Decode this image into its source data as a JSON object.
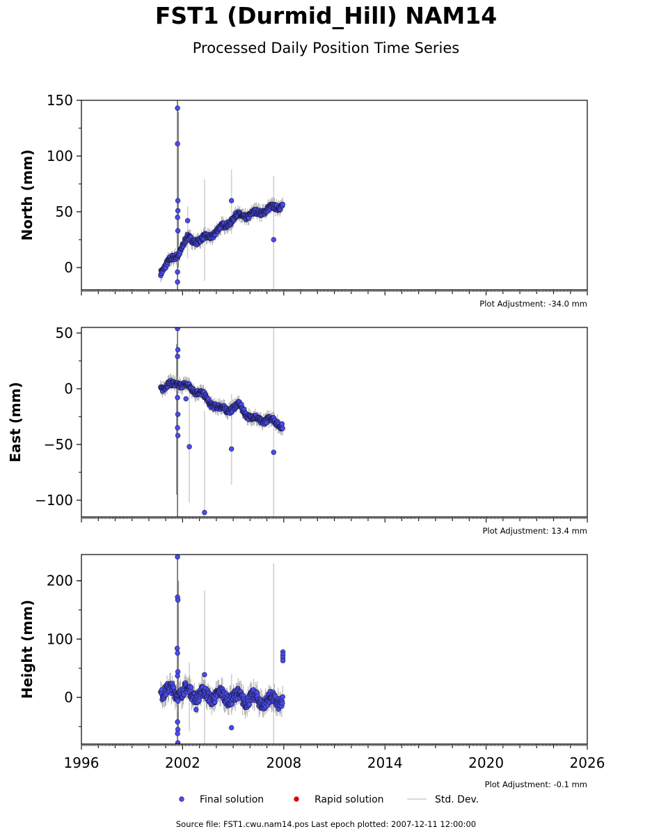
{
  "title": "FST1 (Durmid_Hill) NAM14",
  "subtitle": "Processed Daily Position Time Series",
  "footer": "Source file: FST1.cwu.nam14.pos  Last epoch plotted: 2007-12-11 12:00:00",
  "legend": [
    {
      "label": "Final solution",
      "color": "#4b4bf0",
      "kind": "marker"
    },
    {
      "label": "Rapid solution",
      "color": "#e00000",
      "kind": "marker"
    },
    {
      "label": "Std. Dev.",
      "color": "#cccccc",
      "kind": "line"
    }
  ],
  "chart_data": [
    {
      "type": "scatter",
      "ylabel": "North (mm)",
      "adjustment": "Plot Adjustment: -34.0 mm",
      "xlim": [
        1996,
        2026
      ],
      "ylim": [
        -20,
        150
      ],
      "yticks": [
        0,
        50,
        100,
        150
      ],
      "xticks": [
        1996,
        2002,
        2008,
        2014,
        2020,
        2026
      ],
      "series_color": "#4b4bf0",
      "trend": [
        [
          2000.7,
          -3
        ],
        [
          2001.2,
          5
        ],
        [
          2001.7,
          12
        ],
        [
          2002.3,
          26
        ],
        [
          2003.0,
          24
        ],
        [
          2003.8,
          30
        ],
        [
          2004.5,
          38
        ],
        [
          2005.2,
          46
        ],
        [
          2006.0,
          47
        ],
        [
          2006.8,
          51
        ],
        [
          2007.5,
          54
        ],
        [
          2007.95,
          57
        ]
      ],
      "scatter_amp": 3,
      "outliers": [
        [
          2001.7,
          143
        ],
        [
          2001.7,
          111
        ],
        [
          2001.72,
          60
        ],
        [
          2001.72,
          51
        ],
        [
          2001.7,
          45
        ],
        [
          2001.72,
          33
        ],
        [
          2001.7,
          -4
        ],
        [
          2001.7,
          -13
        ],
        [
          2002.3,
          42
        ],
        [
          2004.9,
          60
        ],
        [
          2007.4,
          25
        ]
      ],
      "stddev": [
        [
          2001.7,
          150,
          -20,
          "#666666"
        ],
        [
          2001.75,
          140,
          0,
          "#888888"
        ],
        [
          2002.3,
          55,
          8,
          "#d0d0d0"
        ],
        [
          2003.3,
          79,
          -12,
          "#d0d0d0"
        ],
        [
          2004.9,
          88,
          30,
          "#d0d0d0"
        ],
        [
          2007.4,
          82,
          -20,
          "#d0d0d0"
        ]
      ]
    },
    {
      "type": "scatter",
      "ylabel": "East (mm)",
      "adjustment": "Plot Adjustment: 13.4 mm",
      "xlim": [
        1996,
        2026
      ],
      "ylim": [
        -115,
        55
      ],
      "yticks": [
        -100,
        -50,
        0,
        50
      ],
      "xticks": [
        1996,
        2002,
        2008,
        2014,
        2020,
        2026
      ],
      "series_color": "#4b4bf0",
      "trend": [
        [
          2000.7,
          1
        ],
        [
          2001.2,
          3
        ],
        [
          2001.7,
          5
        ],
        [
          2002.4,
          1
        ],
        [
          2003.0,
          -3
        ],
        [
          2003.6,
          -12
        ],
        [
          2004.2,
          -18
        ],
        [
          2004.9,
          -18
        ],
        [
          2005.4,
          -15
        ],
        [
          2006.0,
          -26
        ],
        [
          2006.7,
          -28
        ],
        [
          2007.3,
          -28
        ],
        [
          2007.95,
          -33
        ]
      ],
      "scatter_amp": 3,
      "outliers": [
        [
          2001.7,
          54
        ],
        [
          2001.72,
          35
        ],
        [
          2001.7,
          29
        ],
        [
          2001.7,
          -8
        ],
        [
          2001.72,
          -23
        ],
        [
          2001.7,
          -35
        ],
        [
          2001.72,
          -42
        ],
        [
          2002.2,
          -9
        ],
        [
          2002.4,
          -52
        ],
        [
          2003.3,
          -111
        ],
        [
          2004.9,
          -54
        ],
        [
          2007.4,
          -57
        ]
      ],
      "stddev": [
        [
          2001.7,
          55,
          -115,
          "#666666"
        ],
        [
          2001.65,
          40,
          -95,
          "#888888"
        ],
        [
          2002.4,
          10,
          -102,
          "#d0d0d0"
        ],
        [
          2003.3,
          -20,
          -115,
          "#d0d0d0"
        ],
        [
          2004.9,
          -5,
          -86,
          "#d0d0d0"
        ],
        [
          2007.4,
          55,
          -115,
          "#d0d0d0"
        ]
      ]
    },
    {
      "type": "scatter",
      "ylabel": "Height (mm)",
      "adjustment": "Plot Adjustment: -0.1 mm",
      "xlim": [
        1996,
        2026
      ],
      "ylim": [
        -80,
        245
      ],
      "yticks": [
        0,
        100,
        200
      ],
      "xticks": [
        1996,
        2002,
        2008,
        2014,
        2020,
        2026
      ],
      "xticklabels": [
        "1996",
        "2002",
        "2008",
        "2014",
        "2020",
        "2026"
      ],
      "series_color": "#4b4bf0",
      "trend": [
        [
          2000.7,
          12
        ],
        [
          2001.5,
          10
        ],
        [
          2002.3,
          10
        ],
        [
          2003.0,
          4
        ],
        [
          2004.0,
          3
        ],
        [
          2005.0,
          0
        ],
        [
          2006.0,
          -2
        ],
        [
          2006.8,
          -6
        ],
        [
          2007.5,
          -6
        ],
        [
          2007.95,
          -4
        ]
      ],
      "scatter_amp": 12,
      "outliers": [
        [
          2001.7,
          241
        ],
        [
          2001.7,
          172
        ],
        [
          2001.72,
          167
        ],
        [
          2001.68,
          84
        ],
        [
          2001.7,
          76
        ],
        [
          2001.72,
          44
        ],
        [
          2001.7,
          37
        ],
        [
          2001.7,
          -42
        ],
        [
          2001.72,
          -55
        ],
        [
          2001.7,
          -62
        ],
        [
          2001.72,
          -78
        ],
        [
          2002.8,
          -21
        ],
        [
          2003.3,
          39
        ],
        [
          2004.9,
          -52
        ],
        [
          2007.95,
          78
        ],
        [
          2007.95,
          73
        ],
        [
          2007.95,
          68
        ],
        [
          2007.95,
          63
        ]
      ],
      "stddev": [
        [
          2001.7,
          245,
          -80,
          "#666666"
        ],
        [
          2001.75,
          200,
          -60,
          "#888888"
        ],
        [
          2002.4,
          60,
          -58,
          "#d0d0d0"
        ],
        [
          2003.3,
          183,
          -80,
          "#d0d0d0"
        ],
        [
          2004.9,
          40,
          -30,
          "#d0d0d0"
        ],
        [
          2007.4,
          230,
          -80,
          "#d0d0d0"
        ]
      ]
    }
  ]
}
